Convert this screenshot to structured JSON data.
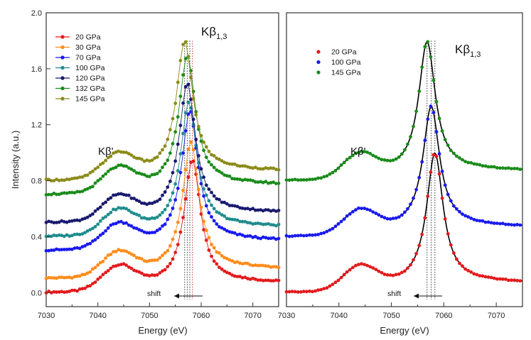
{
  "chart_data": {
    "type": "scatter",
    "shared_xlabel": "Energy (eV)",
    "shared_ylabel": "Intensity (a.u.)",
    "panels": [
      {
        "name": "left",
        "xlim": [
          7030,
          7075
        ],
        "ylim": [
          -0.1,
          2.0
        ],
        "xticks": [
          7030,
          7040,
          7050,
          7060,
          7070
        ],
        "yticks": [
          0.0,
          0.4,
          0.8,
          1.2,
          1.6,
          2.0
        ],
        "ytick_labels": [
          "0.0",
          "0.4",
          "0.8",
          "1.2",
          "1.6",
          "2.0"
        ],
        "annotations": {
          "main_peak": "Kβ",
          "main_peak_sub": "1,3",
          "satellite": "Kβ'",
          "shift_label": "shift"
        },
        "legend": [
          "20 GPa",
          "30 GPa",
          "70 GPa",
          "100 GPa",
          "120 GPa",
          "132 GPa",
          "145 GPa"
        ],
        "series": [
          {
            "name": "20 GPa",
            "color": "#e41a1c",
            "offset": 0.0,
            "peak_energy": 7058.3,
            "peak_height": 0.95
          },
          {
            "name": "30 GPa",
            "color": "#ff8c1a",
            "offset": 0.1,
            "peak_energy": 7058.0,
            "peak_height": 0.98
          },
          {
            "name": "70 GPa",
            "color": "#1a1aee",
            "offset": 0.3,
            "peak_energy": 7057.8,
            "peak_height": 1.0
          },
          {
            "name": "100 GPa",
            "color": "#1f8c8c",
            "offset": 0.4,
            "peak_energy": 7057.6,
            "peak_height": 0.96
          },
          {
            "name": "120 GPa",
            "color": "#191970",
            "offset": 0.5,
            "peak_energy": 7057.3,
            "peak_height": 1.0
          },
          {
            "name": "132 GPa",
            "color": "#1a8c1a",
            "offset": 0.7,
            "peak_energy": 7057.3,
            "peak_height": 1.0
          },
          {
            "name": "145 GPa",
            "color": "#8b8b1a",
            "offset": 0.8,
            "peak_energy": 7056.8,
            "peak_height": 1.0
          }
        ],
        "dotted_lines": [
          {
            "x": 7056.8,
            "color": "#333333"
          },
          {
            "x": 7057.3,
            "color": "#333333"
          },
          {
            "x": 7057.8,
            "color": "#333333"
          },
          {
            "x": 7058.3,
            "color": "#cc3333"
          }
        ]
      },
      {
        "name": "right",
        "xlim": [
          7030,
          7075
        ],
        "ylim": [
          -0.1,
          2.0
        ],
        "xticks": [
          7030,
          7040,
          7050,
          7060,
          7070
        ],
        "yticks": [],
        "annotations": {
          "main_peak": "Kβ",
          "main_peak_sub": "1,3",
          "satellite": "Kβ'",
          "shift_label": "shift"
        },
        "legend": [
          "20 GPa",
          "100 GPa",
          "145 GPa"
        ],
        "series": [
          {
            "name": "20 GPa",
            "color": "#e41a1c",
            "offset": 0.0,
            "peak_energy": 7058.3,
            "peak_height": 1.0,
            "fit": true
          },
          {
            "name": "100 GPa",
            "color": "#1a1aee",
            "offset": 0.4,
            "peak_energy": 7057.6,
            "peak_height": 0.93,
            "fit": true
          },
          {
            "name": "145 GPa",
            "color": "#1a8c1a",
            "offset": 0.8,
            "peak_energy": 7056.8,
            "peak_height": 1.0,
            "fit": true
          }
        ],
        "dotted_lines": [
          {
            "x": 7056.8,
            "color": "#333333"
          },
          {
            "x": 7057.6,
            "color": "#333333"
          },
          {
            "x": 7058.3,
            "color": "#333333"
          }
        ]
      }
    ]
  }
}
